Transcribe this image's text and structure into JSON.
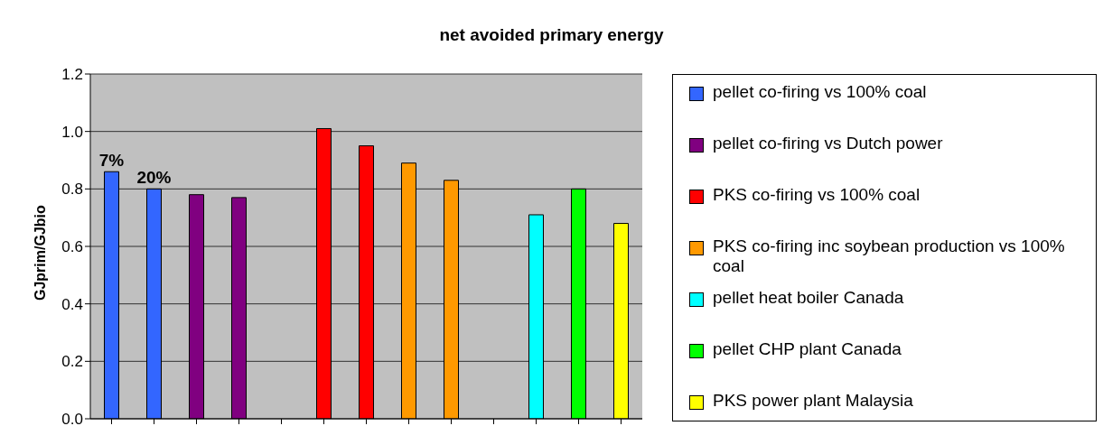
{
  "chart_data": {
    "type": "bar",
    "title": "net avoided primary energy",
    "ylabel": "GJprim/GJbio",
    "categories": [
      null,
      null,
      null,
      null,
      null,
      null,
      null,
      null,
      null,
      null,
      null,
      null,
      null
    ],
    "stacked": true,
    "series": [
      {
        "name": "pellet co-firing vs 100% coal",
        "color": "#3366ff",
        "values": [
          0.86,
          0.8,
          null,
          null,
          null,
          null,
          null,
          null,
          null,
          null,
          null,
          null,
          null
        ]
      },
      {
        "name": "pellet co-firing vs Dutch power",
        "color": "#800080",
        "values": [
          null,
          null,
          0.78,
          0.77,
          null,
          null,
          null,
          null,
          null,
          null,
          null,
          null,
          null
        ]
      },
      {
        "name": "PKS co-firing vs 100% coal",
        "color": "#ff0000",
        "values": [
          null,
          null,
          null,
          null,
          null,
          1.01,
          0.95,
          null,
          null,
          null,
          null,
          null,
          null
        ]
      },
      {
        "name": "PKS co-firing inc soybean production vs 100% coal",
        "color": "#ff9900",
        "values": [
          null,
          null,
          null,
          null,
          null,
          null,
          null,
          0.89,
          0.83,
          null,
          null,
          null,
          null
        ]
      },
      {
        "name": "pellet heat boiler Canada",
        "color": "#00ffff",
        "values": [
          null,
          null,
          null,
          null,
          null,
          null,
          null,
          null,
          null,
          null,
          0.71,
          null,
          null
        ]
      },
      {
        "name": "pellet CHP plant Canada",
        "color": "#00ff00",
        "values": [
          null,
          null,
          null,
          null,
          null,
          null,
          null,
          null,
          null,
          null,
          null,
          0.8,
          null
        ]
      },
      {
        "name": "PKS power plant Malaysia",
        "color": "#ffff00",
        "values": [
          null,
          null,
          null,
          null,
          null,
          null,
          null,
          null,
          null,
          null,
          null,
          null,
          0.68
        ]
      }
    ],
    "annotations": [
      "7%",
      "20%"
    ],
    "ylim": [
      0,
      1.2
    ],
    "yticks": [
      {
        "value": 0,
        "label": "0.0"
      },
      {
        "value": 0.2,
        "label": "0.2"
      },
      {
        "value": 0.4,
        "label": "0.4"
      },
      {
        "value": 0.6,
        "label": "0.6"
      },
      {
        "value": 0.8,
        "label": "0.8"
      },
      {
        "value": 1,
        "label": "1.0"
      },
      {
        "value": 1.2,
        "label": "1.2"
      }
    ],
    "grid": "y",
    "legend": "right"
  }
}
